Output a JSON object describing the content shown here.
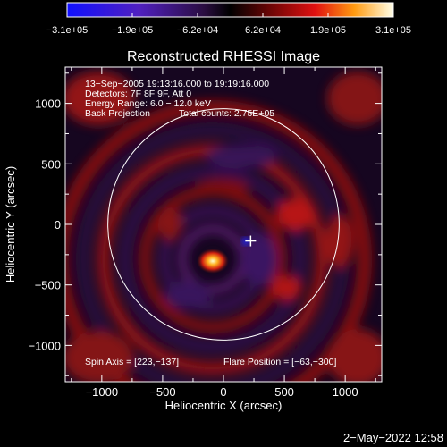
{
  "chart_data": {
    "type": "heatmap",
    "title": "Reconstructed RHESSI Image",
    "xlabel": "Heliocentric X (arcsec)",
    "ylabel": "Heliocentric Y (arcsec)",
    "xlim": [
      -1300,
      1300
    ],
    "ylim": [
      -1300,
      1300
    ],
    "x_ticks": [
      -1000,
      -500,
      0,
      500,
      1000
    ],
    "x_tick_labels": [
      "−1000",
      "−500",
      "0",
      "500",
      "1000"
    ],
    "y_ticks": [
      -1000,
      -500,
      0,
      500,
      1000
    ],
    "y_tick_labels": [
      "−1000",
      "−500",
      "0",
      "500",
      "1000"
    ],
    "colorbar": {
      "range": [
        -310000,
        310000
      ],
      "tick_labels": [
        "−3.1e+05",
        "−1.9e+05",
        "−6.2e+04",
        "6.2e+04",
        "1.9e+05",
        "3.1e+05"
      ]
    },
    "info_lines": [
      "13−Sep−2005 19:13:16.000 to 19:19:16.000",
      "Detectors: 7F 8F 9F, Att 0",
      "Energy Range: 6.0 − 12.0 keV"
    ],
    "back_projection_label": "Back Projection",
    "total_counts_label": "Total counts: 2.75E+05",
    "spin_axis_label": "Spin Axis = [223,−137]",
    "flare_position_label": "Flare Position = [−63,−300]",
    "solar_limb_radius": 950,
    "flare_position": [
      -63,
      -300
    ],
    "spin_axis": [
      223,
      -137
    ]
  },
  "footer_date": "2−May−2022 12:58"
}
